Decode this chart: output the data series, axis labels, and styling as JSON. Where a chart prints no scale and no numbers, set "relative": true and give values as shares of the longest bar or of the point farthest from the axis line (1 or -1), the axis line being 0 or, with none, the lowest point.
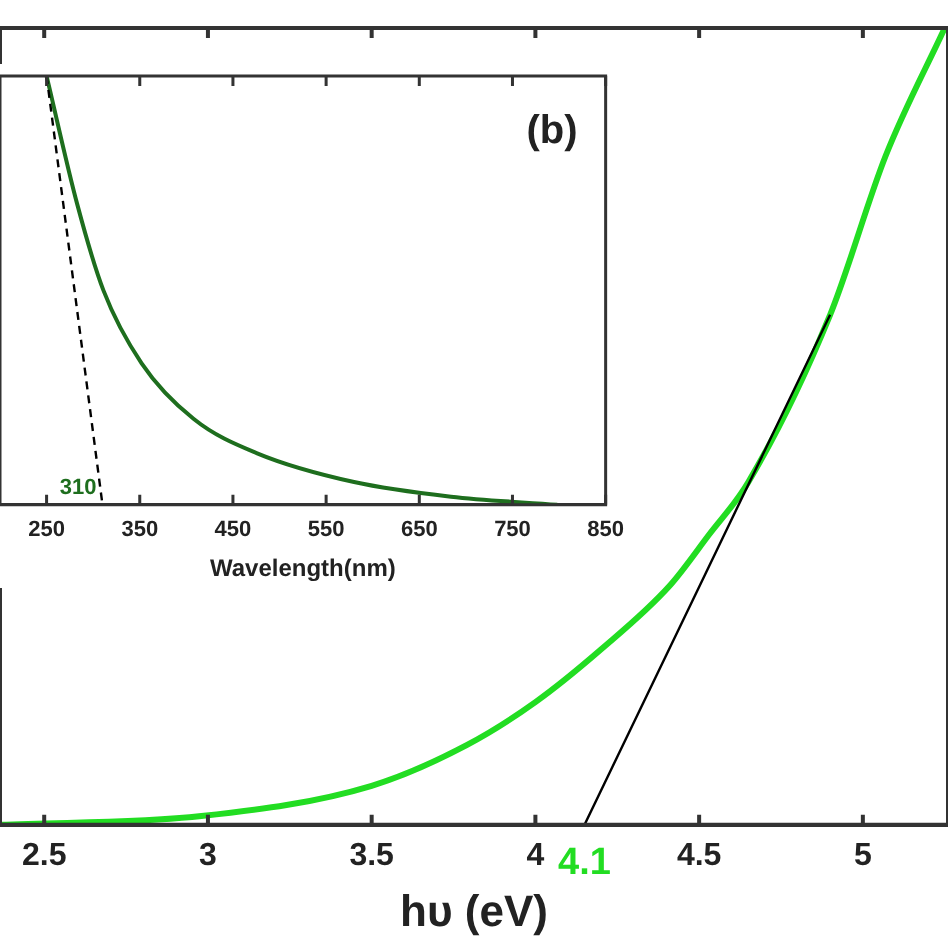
{
  "chart_data": [
    {
      "type": "line",
      "xlabel": "hυ (eV)",
      "relative": true,
      "xlim": [
        2.365,
        5.26
      ],
      "xticks": [
        2.5,
        3,
        3.5,
        4,
        4.5,
        5
      ],
      "series": [
        {
          "color": "#22dd22",
          "x": [
            2.365,
            2.98,
            3.5,
            3.79,
            4.0,
            4.2,
            4.41,
            4.53,
            4.65,
            4.9,
            5.07,
            5.25
          ],
          "values": [
            0,
            0.011,
            0.049,
            0.1,
            0.154,
            0.22,
            0.3,
            0.364,
            0.43,
            0.64,
            0.84,
            1
          ]
        },
        {
          "color": "#000000",
          "x": [
            4.15,
            4.9
          ],
          "values": [
            0,
            0.64
          ]
        }
      ],
      "annotations": [
        {
          "text": "4.1",
          "x": 4.15,
          "y": 0
        }
      ]
    },
    {
      "type": "line",
      "xlabel": "Wavelength(nm)",
      "relative": true,
      "xlim": [
        200,
        850
      ],
      "xticks": [
        250,
        350,
        450,
        550,
        650,
        750,
        850
      ],
      "series": [
        {
          "color": "#1e6e1e",
          "x": [
            250,
            283,
            311,
            352,
            408,
            476,
            580,
            684,
            798
          ],
          "values": [
            1,
            0.7,
            0.5,
            0.33,
            0.2,
            0.12,
            0.053,
            0.019,
            0
          ]
        },
        {
          "color": "#000000",
          "line_style": "dashed",
          "x": [
            250,
            310
          ],
          "values": [
            1,
            0
          ]
        }
      ],
      "annotations": [
        "(b)",
        {
          "text": "310",
          "x": 310,
          "y": 0
        }
      ]
    }
  ]
}
